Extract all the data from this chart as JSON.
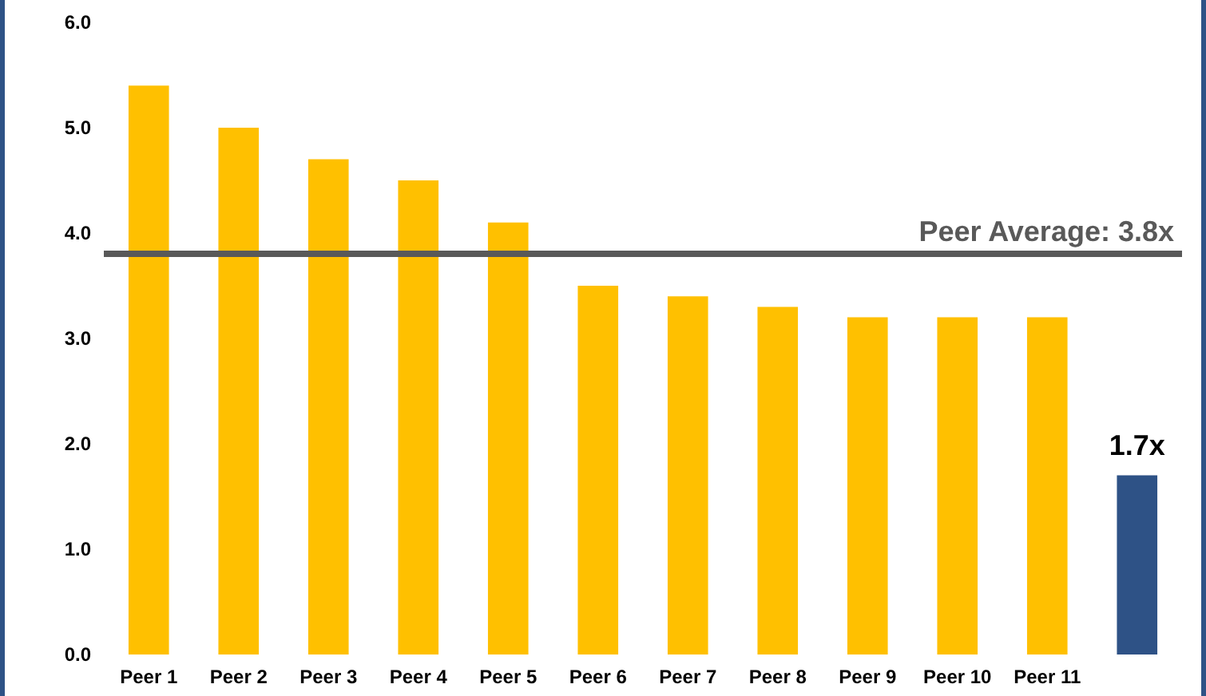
{
  "chart_data": {
    "type": "bar",
    "categories": [
      "Peer 1",
      "Peer 2",
      "Peer 3",
      "Peer 4",
      "Peer 5",
      "Peer 6",
      "Peer 7",
      "Peer 8",
      "Peer 9",
      "Peer 10",
      "Peer 11",
      null
    ],
    "values": [
      5.4,
      5.0,
      4.7,
      4.5,
      4.1,
      3.5,
      3.4,
      3.3,
      3.2,
      3.2,
      3.2,
      1.7
    ],
    "colors": [
      "#ffc000",
      "#ffc000",
      "#ffc000",
      "#ffc000",
      "#ffc000",
      "#ffc000",
      "#ffc000",
      "#ffc000",
      "#ffc000",
      "#ffc000",
      "#ffc000",
      "#2e5286"
    ],
    "value_labels": [
      null,
      null,
      null,
      null,
      null,
      null,
      null,
      null,
      null,
      null,
      null,
      "1.7x"
    ],
    "ylim": [
      0,
      6
    ],
    "yticks": [
      {
        "value": 0,
        "label": "0.0"
      },
      {
        "value": 1,
        "label": "1.0"
      },
      {
        "value": 2,
        "label": "2.0"
      },
      {
        "value": 3,
        "label": "3.0"
      },
      {
        "value": 4,
        "label": "4.0"
      },
      {
        "value": 5,
        "label": "5.0"
      },
      {
        "value": 6,
        "label": "6.0"
      }
    ],
    "ref_lines": [
      {
        "axis": "y",
        "value": 3.8,
        "label": "Peer Average: 3.8x",
        "color": "#595959"
      }
    ],
    "grid": false
  }
}
